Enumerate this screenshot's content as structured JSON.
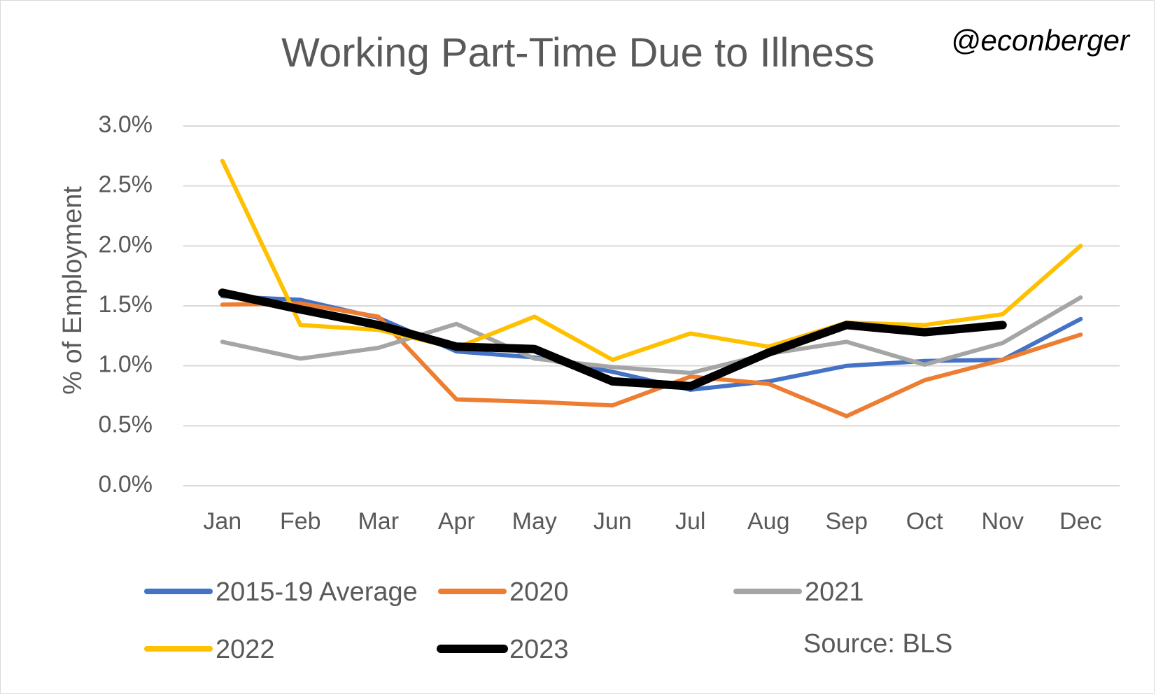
{
  "header": {
    "title": "Working Part-Time Due to Illness",
    "handle": "@econberger"
  },
  "source_note": "Source: BLS",
  "chart_data": {
    "type": "line",
    "title": "Working Part-Time Due to Illness",
    "ylabel": "% of Employment",
    "xlabel": "",
    "categories": [
      "Jan",
      "Feb",
      "Mar",
      "Apr",
      "May",
      "Jun",
      "Jul",
      "Aug",
      "Sep",
      "Oct",
      "Nov",
      "Dec"
    ],
    "ylim": [
      0,
      3.0
    ],
    "yticks": [
      0.0,
      0.5,
      1.0,
      1.5,
      2.0,
      2.5,
      3.0
    ],
    "ytick_labels": [
      "0.0%",
      "0.5%",
      "1.0%",
      "1.5%",
      "2.0%",
      "2.5%",
      "3.0%"
    ],
    "grid": true,
    "legend_position": "bottom",
    "series": [
      {
        "name": "2015-19 Average",
        "color": "#4472c4",
        "values": [
          1.58,
          1.55,
          1.4,
          1.12,
          1.07,
          0.95,
          0.8,
          0.87,
          1.0,
          1.04,
          1.05,
          1.39
        ]
      },
      {
        "name": "2020",
        "color": "#ed7d31",
        "values": [
          1.51,
          1.52,
          1.41,
          0.72,
          0.7,
          0.67,
          0.91,
          0.85,
          0.58,
          0.88,
          1.05,
          1.26
        ]
      },
      {
        "name": "2021",
        "color": "#a5a5a5",
        "values": [
          1.2,
          1.06,
          1.15,
          1.35,
          1.06,
          0.99,
          0.94,
          1.1,
          1.2,
          1.01,
          1.19,
          1.57
        ]
      },
      {
        "name": "2022",
        "color": "#ffc000",
        "values": [
          2.71,
          1.34,
          1.3,
          1.15,
          1.41,
          1.05,
          1.27,
          1.16,
          1.36,
          1.34,
          1.43,
          2.0
        ]
      },
      {
        "name": "2023",
        "color": "#000000",
        "values": [
          1.61,
          1.47,
          1.34,
          1.16,
          1.14,
          0.87,
          0.83,
          1.11,
          1.34,
          1.28,
          1.34,
          null
        ]
      }
    ]
  }
}
